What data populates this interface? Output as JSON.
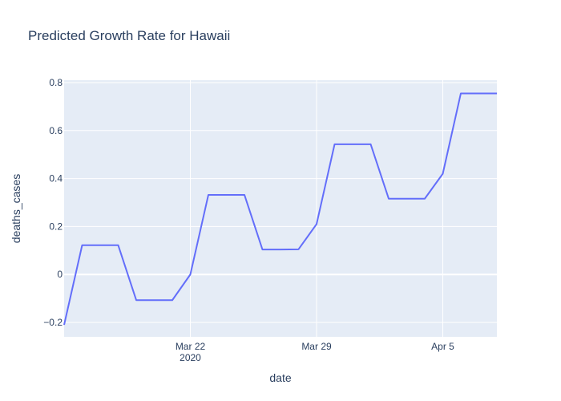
{
  "chart_data": {
    "type": "line",
    "title": "Predicted Growth Rate for Hawaii",
    "xlabel": "date",
    "ylabel": "deaths_cases",
    "x_tick_labels": [
      {
        "date": "2020-03-22",
        "label": "Mar 22",
        "sublabel": "2020"
      },
      {
        "date": "2020-03-29",
        "label": "Mar 29",
        "sublabel": ""
      },
      {
        "date": "2020-04-05",
        "label": "Apr 5",
        "sublabel": ""
      }
    ],
    "y_ticks": [
      -0.2,
      0,
      0.2,
      0.4,
      0.6,
      0.8
    ],
    "y_tick_labels": [
      "−0.2",
      "0",
      "0.2",
      "0.4",
      "0.6",
      "0.8"
    ],
    "xlim": [
      "2020-03-15",
      "2020-04-08"
    ],
    "ylim": [
      -0.26,
      0.81
    ],
    "grid": true,
    "colors": {
      "line": "#636efa",
      "plot_bg": "#e5ecf6",
      "grid": "#ffffff",
      "text": "#2a3f5f"
    },
    "series": [
      {
        "x": [
          "2020-03-15",
          "2020-03-16",
          "2020-03-17",
          "2020-03-18",
          "2020-03-19",
          "2020-03-20",
          "2020-03-21",
          "2020-03-22",
          "2020-03-23",
          "2020-03-24",
          "2020-03-25",
          "2020-03-26",
          "2020-03-27",
          "2020-03-28",
          "2020-03-29",
          "2020-03-30",
          "2020-03-31",
          "2020-04-01",
          "2020-04-02",
          "2020-04-03",
          "2020-04-04",
          "2020-04-05",
          "2020-04-06",
          "2020-04-07",
          "2020-04-08"
        ],
        "values": [
          -0.21,
          0.122,
          0.122,
          0.122,
          -0.107,
          -0.107,
          -0.107,
          0.0,
          0.332,
          0.332,
          0.332,
          0.104,
          0.104,
          0.105,
          0.21,
          0.543,
          0.543,
          0.543,
          0.316,
          0.316,
          0.316,
          0.42,
          0.755,
          0.755,
          0.755
        ]
      }
    ]
  }
}
